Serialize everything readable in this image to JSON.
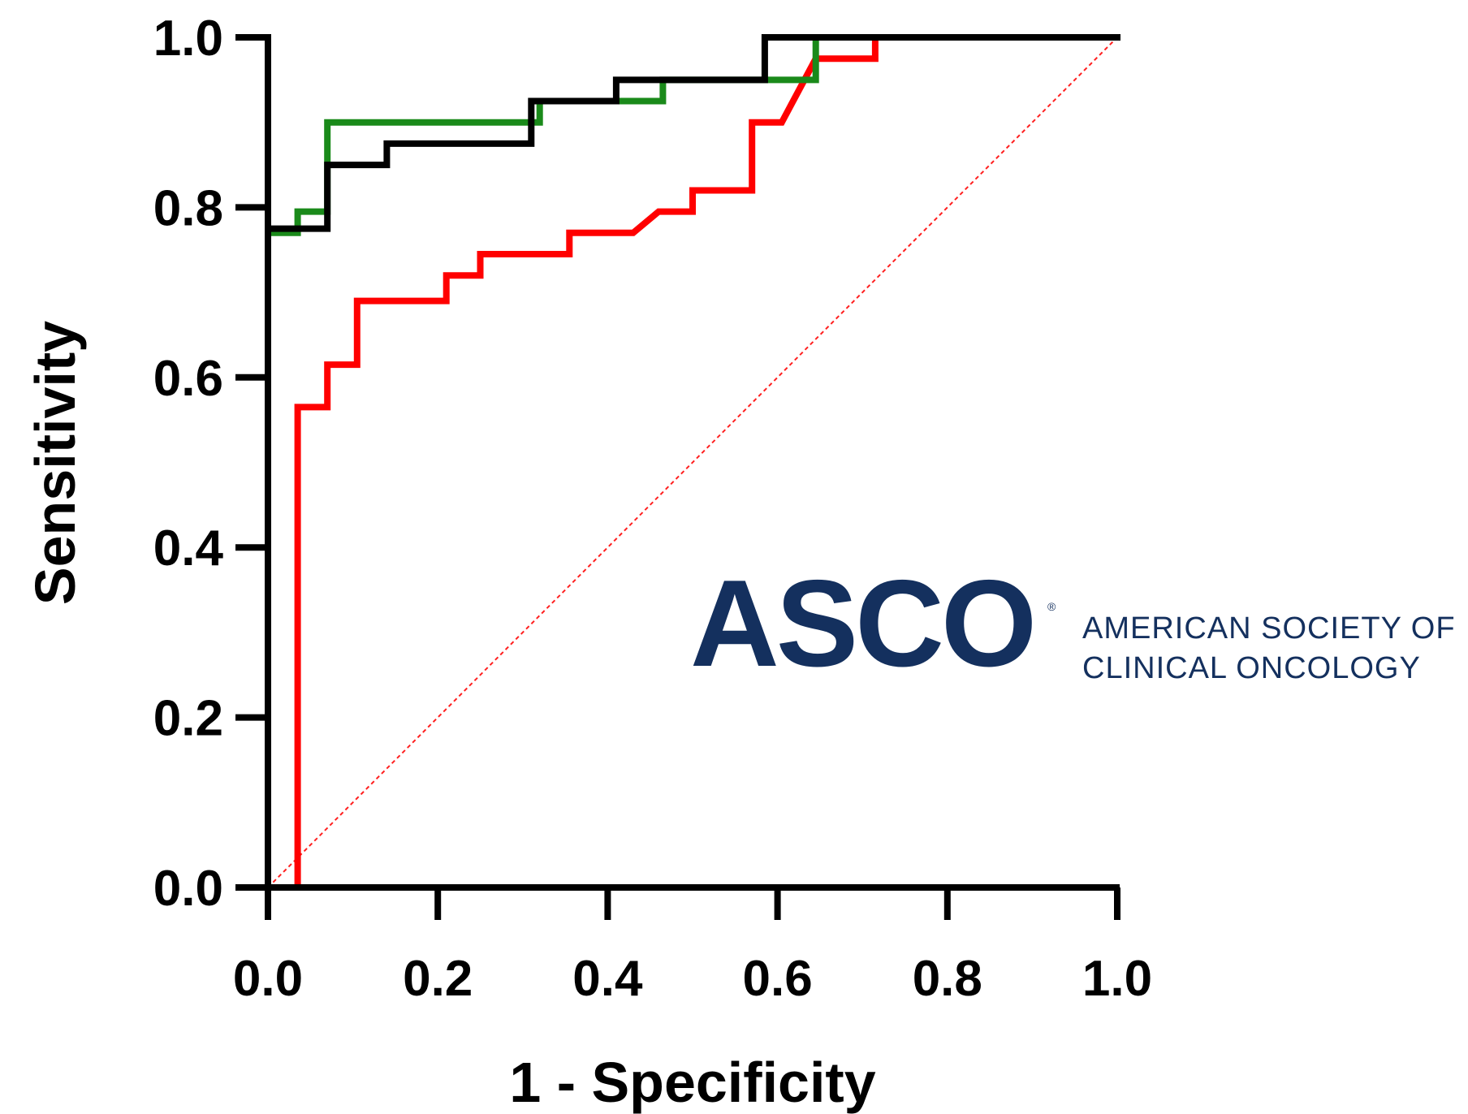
{
  "chart_data": {
    "type": "line",
    "xlabel": "1 - Specificity",
    "ylabel": "Sensitivity",
    "xlim": [
      0,
      1
    ],
    "ylim": [
      0,
      1
    ],
    "x_ticks": [
      "0.0",
      "0.2",
      "0.4",
      "0.6",
      "0.8",
      "1.0"
    ],
    "y_ticks": [
      "0.0",
      "0.2",
      "0.4",
      "0.6",
      "0.8",
      "1.0"
    ],
    "grid": false,
    "legend": "none",
    "reference_line": {
      "x": [
        0,
        1
      ],
      "y": [
        0,
        1
      ],
      "color": "#ff2020",
      "style": "dotted"
    },
    "series": [
      {
        "color": "#ff0000",
        "x": [
          0,
          0.035,
          0.035,
          0.07,
          0.07,
          0.105,
          0.105,
          0.21,
          0.21,
          0.25,
          0.25,
          0.355,
          0.355,
          0.43,
          0.46,
          0.5,
          0.5,
          0.57,
          0.57,
          0.605,
          0.645,
          0.715,
          0.715,
          1.0
        ],
        "y": [
          0,
          0,
          0.565,
          0.565,
          0.615,
          0.615,
          0.69,
          0.69,
          0.72,
          0.72,
          0.745,
          0.745,
          0.77,
          0.77,
          0.795,
          0.795,
          0.82,
          0.82,
          0.9,
          0.9,
          0.975,
          0.975,
          1.0,
          1.0
        ]
      },
      {
        "color": "#1a8a1a",
        "x": [
          0,
          0,
          0.035,
          0.035,
          0.07,
          0.07,
          0.32,
          0.32,
          0.465,
          0.465,
          0.645,
          0.645,
          1.0
        ],
        "y": [
          0,
          0.77,
          0.77,
          0.795,
          0.795,
          0.9,
          0.9,
          0.925,
          0.925,
          0.95,
          0.95,
          1.0,
          1.0
        ]
      },
      {
        "color": "#000000",
        "x": [
          0,
          0,
          0.07,
          0.07,
          0.14,
          0.14,
          0.31,
          0.31,
          0.41,
          0.41,
          0.585,
          0.585,
          1.0
        ],
        "y": [
          0,
          0.775,
          0.775,
          0.85,
          0.85,
          0.875,
          0.875,
          0.925,
          0.925,
          0.95,
          0.95,
          1.0,
          1.0
        ]
      }
    ]
  },
  "logo": {
    "wordmark": "ASCO",
    "registered": "®",
    "line1": "AMERICAN SOCIETY OF",
    "line2": "CLINICAL ONCOLOGY",
    "color": "#14305e"
  }
}
